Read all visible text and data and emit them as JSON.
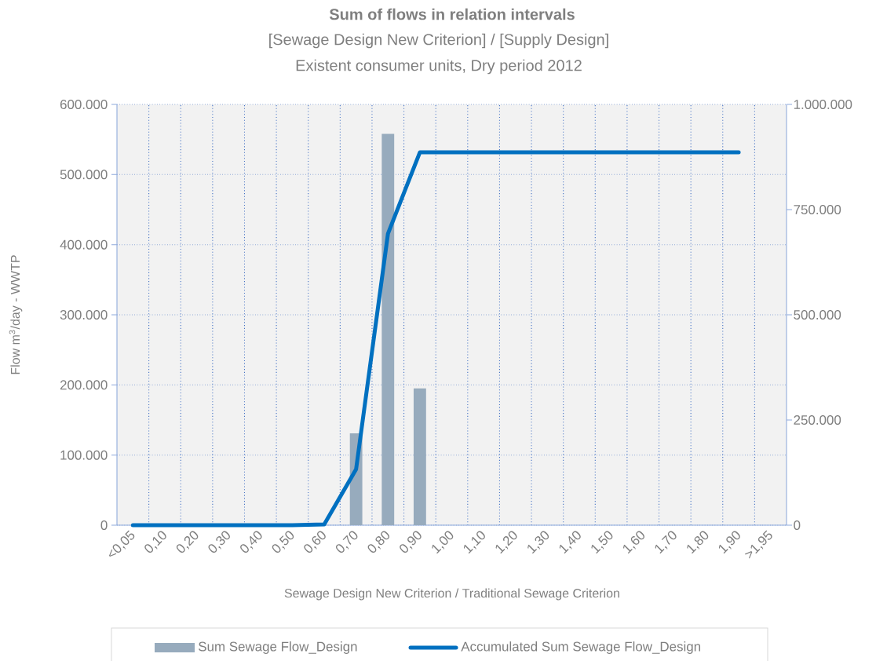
{
  "chart_data": {
    "type": "bar",
    "title": "Sum of flows in relation intervals",
    "subtitle": "[Sewage Design New Criterion] / [Supply Design]",
    "annotations": [
      "Existent consumer units, Dry period 2012"
    ],
    "xlabel": "Sewage Design New Criterion  / Traditional Sewage Criterion",
    "ylabel": "Flow m$^{3}$/day - WWTP",
    "categories": [
      "<0,05",
      "0,10",
      "0,20",
      "0,30",
      "0,40",
      "0,50",
      "0,60",
      "0,70",
      "0,80",
      "0,90",
      "1,00",
      "1,10",
      "1,20",
      "1,30",
      "1,40",
      "1,50",
      "1,60",
      "1,70",
      "1,80",
      "1,90",
      ">1,95"
    ],
    "series": [
      {
        "name": "Sum Sewage Flow_Design",
        "color": "#97abbd",
        "values": [
          0,
          0,
          0,
          0,
          0,
          0,
          0,
          131000,
          558000,
          195000,
          0,
          0,
          0,
          0,
          0,
          0,
          0,
          0,
          0,
          0,
          0
        ]
      },
      {
        "name": "Accumulated Sum Sewage Flow_Design",
        "type": "line",
        "axis": "y2",
        "color": "#0070c0",
        "values": [
          0,
          0,
          0,
          0,
          0,
          0,
          2000,
          133000,
          693000,
          886000,
          886000,
          886000,
          886000,
          886000,
          886000,
          886000,
          886000,
          886000,
          886000,
          886000,
          null
        ]
      }
    ],
    "ylim": [
      0,
      600000
    ],
    "yticks": [
      0,
      {
        "value": 100000,
        "label": "100.000"
      },
      {
        "value": 200000,
        "label": "200.000"
      },
      {
        "value": 300000,
        "label": "300.000"
      },
      {
        "value": 400000,
        "label": "400.000"
      },
      {
        "value": 500000,
        "label": "500.000"
      },
      {
        "value": 600000,
        "label": "600.000"
      }
    ],
    "y2lim": [
      0,
      1000000
    ],
    "y2ticks": [
      0,
      {
        "value": 250000,
        "label": "250.000"
      },
      {
        "value": 500000,
        "label": "500.000"
      },
      {
        "value": 750000,
        "label": "750.000"
      },
      {
        "value": 1000000,
        "label": "1.000.000"
      }
    ],
    "grid": true,
    "legend": "bottom"
  }
}
